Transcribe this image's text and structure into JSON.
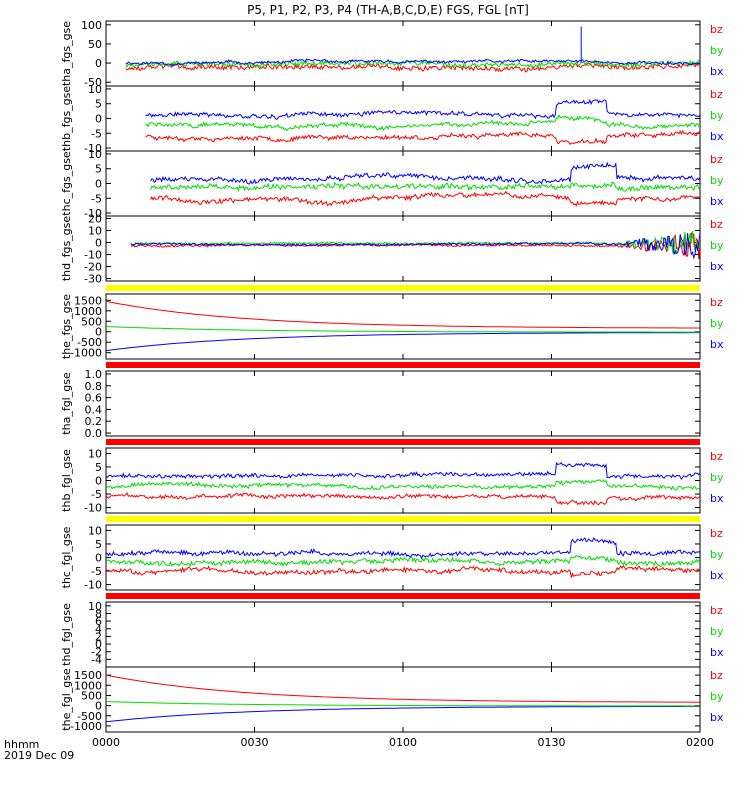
{
  "title": "P5, P1, P2, P3, P4 (TH-A,B,C,D,E) FGS, FGL [nT]",
  "x_axis": {
    "tick_labels": [
      "0000",
      "0030",
      "0100",
      "0130",
      "0200"
    ],
    "corner_label_1": "hhmm",
    "corner_label_2": "2019 Dec 09"
  },
  "colors": {
    "bx": "#0000ff",
    "by": "#00dd00",
    "bz": "#ff0000",
    "flag_yellow": "#ffff00",
    "flag_red": "#ff0000"
  },
  "chart_data": [
    {
      "type": "line",
      "ylabel": "tha_fgs_gse",
      "ylim": [
        -60,
        110
      ],
      "ytick_labels": [
        "100",
        "50",
        "0",
        "-50"
      ],
      "legend": [
        "bz",
        "by",
        "bx"
      ],
      "x_range_minutes": [
        4,
        120
      ],
      "series": [
        {
          "name": "bx",
          "level": 1,
          "noise": 3,
          "walk": 2.5,
          "seed": 11
        },
        {
          "name": "by",
          "level": -3,
          "noise": 6,
          "walk": 3,
          "seed": 12
        },
        {
          "name": "bz",
          "level": -13,
          "noise": 6,
          "walk": 3,
          "seed": 13
        }
      ],
      "spike": {
        "series": "bx",
        "x_minutes": 96,
        "y": 95
      }
    },
    {
      "type": "line",
      "ylabel": "thb_fgs_gse",
      "ylim": [
        -11,
        11
      ],
      "ytick_labels": [
        "10",
        "5",
        "0",
        "-5",
        "-10"
      ],
      "legend": [
        "bz",
        "by",
        "bx"
      ],
      "x_range_minutes": [
        8,
        120
      ],
      "series": [
        {
          "name": "bx",
          "level": 1.5,
          "noise": 0.6,
          "walk": 0.45,
          "seed": 21
        },
        {
          "name": "by",
          "level": -2,
          "noise": 0.6,
          "walk": 0.45,
          "seed": 22
        },
        {
          "name": "bz",
          "level": -6,
          "noise": 0.6,
          "walk": 0.45,
          "seed": 23
        }
      ],
      "bump": {
        "x_minutes": [
          91,
          101
        ],
        "bx": 4,
        "by": 1.5,
        "bz": -2
      }
    },
    {
      "type": "line",
      "ylabel": "thc_fgs_gse",
      "ylim": [
        -11,
        11
      ],
      "ytick_labels": [
        "10",
        "5",
        "0",
        "-5",
        "-10"
      ],
      "legend": [
        "bz",
        "by",
        "bx"
      ],
      "x_range_minutes": [
        9,
        120
      ],
      "series": [
        {
          "name": "bx",
          "level": 1.5,
          "noise": 0.7,
          "walk": 0.5,
          "seed": 31
        },
        {
          "name": "by",
          "level": -1.5,
          "noise": 0.8,
          "walk": 0.5,
          "seed": 32
        },
        {
          "name": "bz",
          "level": -5,
          "noise": 0.7,
          "walk": 0.5,
          "seed": 33
        }
      ],
      "bump": {
        "x_minutes": [
          94,
          103
        ],
        "bx": 4,
        "by": 1,
        "bz": -2
      }
    },
    {
      "type": "line",
      "ylabel": "thd_fgs_gse",
      "ylim": [
        -32,
        22
      ],
      "ytick_labels": [
        "20",
        "10",
        "0",
        "-10",
        "-20",
        "-30"
      ],
      "legend": [
        "bz",
        "by",
        "bx"
      ],
      "x_range_minutes": [
        5,
        120
      ],
      "series": [
        {
          "name": "bx",
          "level": -1.5,
          "noise": 0.8,
          "walk": 0.3,
          "seed": 41
        },
        {
          "name": "by",
          "level": -1,
          "noise": 0.8,
          "walk": 0.3,
          "seed": 42
        },
        {
          "name": "bz",
          "level": -2.5,
          "noise": 0.8,
          "walk": 0.3,
          "seed": 43
        }
      ],
      "turbulent_from_minutes": 102
    },
    {
      "type": "line",
      "ylabel": "the_fgs_gse",
      "ylim": [
        -1300,
        1800
      ],
      "ytick_labels": [
        "1500",
        "1000",
        "500",
        "0",
        "-500",
        "-1000"
      ],
      "legend": [
        "bz",
        "by",
        "bx"
      ],
      "x_range_minutes": [
        0,
        120
      ],
      "decay": [
        {
          "name": "bz",
          "start": 1450,
          "end": 160
        },
        {
          "name": "by",
          "start": 250,
          "end": -20
        },
        {
          "name": "bx",
          "start": -900,
          "end": -30
        }
      ],
      "flag_bar": "yellow"
    },
    {
      "type": "line",
      "ylabel": "tha_fgl_gse",
      "ylim": [
        -0.05,
        1.05
      ],
      "ytick_labels": [
        "1.0",
        "0.8",
        "0.6",
        "0.4",
        "0.2",
        "0.0"
      ],
      "legend": [],
      "empty": true,
      "flag_bar": "red"
    },
    {
      "type": "line",
      "ylabel": "thb_fgl_gse",
      "ylim": [
        -12,
        12
      ],
      "ytick_labels": [
        "10",
        "5",
        "0",
        "-5",
        "-10"
      ],
      "legend": [
        "bz",
        "by",
        "bx"
      ],
      "x_range_minutes": [
        0,
        120
      ],
      "series": [
        {
          "name": "bx",
          "level": 1.5,
          "noise": 0.6,
          "walk": 0.45,
          "seed": 71
        },
        {
          "name": "by",
          "level": -2,
          "noise": 0.6,
          "walk": 0.45,
          "seed": 72
        },
        {
          "name": "bz",
          "level": -6,
          "noise": 0.6,
          "walk": 0.45,
          "seed": 73
        }
      ],
      "bump": {
        "x_minutes": [
          91,
          101
        ],
        "bx": 4,
        "by": 1.5,
        "bz": -2
      },
      "flag_bar": "red"
    },
    {
      "type": "line",
      "ylabel": "thc_fgl_gse",
      "ylim": [
        -12,
        12
      ],
      "ytick_labels": [
        "10",
        "5",
        "0",
        "-5",
        "-10"
      ],
      "legend": [
        "bz",
        "by",
        "bx"
      ],
      "x_range_minutes": [
        0,
        120
      ],
      "series": [
        {
          "name": "bx",
          "level": 1.5,
          "noise": 0.7,
          "walk": 0.5,
          "seed": 81
        },
        {
          "name": "by",
          "level": -1.5,
          "noise": 0.8,
          "walk": 0.5,
          "seed": 82
        },
        {
          "name": "bz",
          "level": -5,
          "noise": 0.7,
          "walk": 0.5,
          "seed": 83
        }
      ],
      "bump": {
        "x_minutes": [
          94,
          103
        ],
        "bx": 4,
        "by": 1,
        "bz": -2
      },
      "flag_bar": "yellow"
    },
    {
      "type": "line",
      "ylabel": "thd_fgl_gse",
      "ylim": [
        -6,
        11
      ],
      "ytick_labels": [
        "10",
        "8",
        "6",
        "4",
        "2",
        "0",
        "-2",
        "-4"
      ],
      "legend": [
        "bz",
        "by",
        "bx"
      ],
      "empty": true,
      "flag_bar": "red"
    },
    {
      "type": "line",
      "ylabel": "the_fgl_gse",
      "ylim": [
        -1300,
        1900
      ],
      "ytick_labels": [
        "1500",
        "1000",
        "500",
        "0",
        "-500",
        "-1000"
      ],
      "legend": [
        "bz",
        "by",
        "bx"
      ],
      "x_range_minutes": [
        0,
        120
      ],
      "decay": [
        {
          "name": "bz",
          "start": 1500,
          "end": 150
        },
        {
          "name": "by",
          "start": 200,
          "end": -20
        },
        {
          "name": "bx",
          "start": -800,
          "end": -30
        }
      ]
    }
  ]
}
